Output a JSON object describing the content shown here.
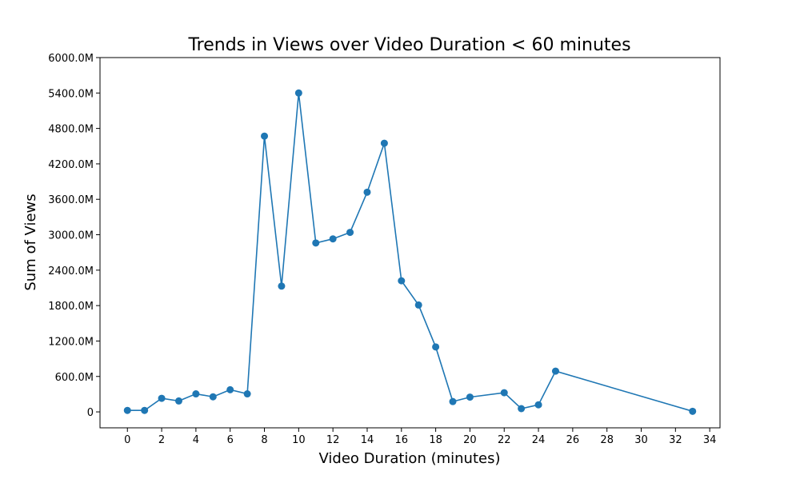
{
  "chart_data": {
    "type": "line",
    "title": "Trends in Views over Video Duration < 60 minutes",
    "xlabel": "Video Duration (minutes)",
    "ylabel": "Sum of Views",
    "xlim": [
      -1.6,
      34.6
    ],
    "ylim": [
      -270,
      6000
    ],
    "x_ticks": [
      0,
      2,
      4,
      6,
      8,
      10,
      12,
      14,
      16,
      18,
      20,
      22,
      24,
      26,
      28,
      30,
      32,
      34
    ],
    "x_tick_labels": [
      "0",
      "2",
      "4",
      "6",
      "8",
      "10",
      "12",
      "14",
      "16",
      "18",
      "20",
      "22",
      "24",
      "26",
      "28",
      "30",
      "32",
      "34"
    ],
    "y_ticks": [
      0,
      600,
      1200,
      1800,
      2400,
      3000,
      3600,
      4200,
      4800,
      5400,
      6000
    ],
    "y_tick_labels": [
      "0",
      "600.0M",
      "1200.0M",
      "1800.0M",
      "2400.0M",
      "3000.0M",
      "3600.0M",
      "4200.0M",
      "4800.0M",
      "5400.0M",
      "6000.0M"
    ],
    "grid": false,
    "series": [
      {
        "color": "#1f77b4",
        "marker": "circle",
        "x": [
          0,
          1,
          2,
          3,
          4,
          5,
          6,
          7,
          8,
          9,
          10,
          11,
          12,
          13,
          14,
          15,
          16,
          17,
          18,
          19,
          20,
          22,
          23,
          24,
          25,
          33
        ],
        "y": [
          25,
          25,
          230,
          185,
          305,
          255,
          375,
          305,
          4670,
          2130,
          5400,
          2860,
          2930,
          3040,
          3720,
          4550,
          2220,
          1810,
          1100,
          175,
          250,
          325,
          55,
          120,
          690,
          10
        ]
      }
    ]
  }
}
